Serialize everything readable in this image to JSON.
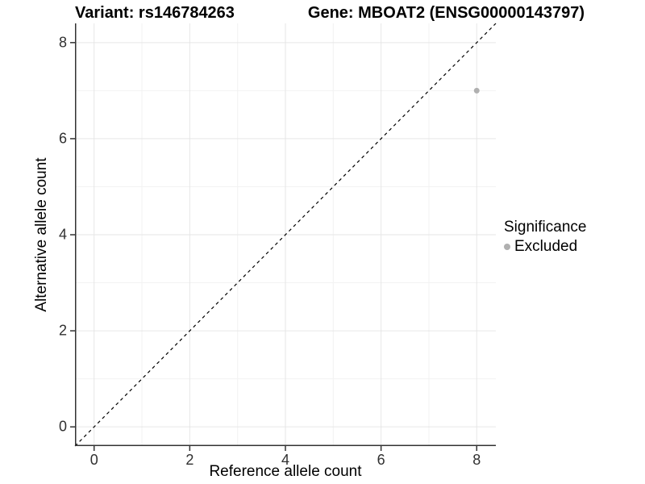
{
  "title": {
    "variant": "Variant: rs146784263",
    "gene": "Gene: MBOAT2 (ENSG00000143797)"
  },
  "axes": {
    "x": {
      "label": "Reference allele count"
    },
    "y": {
      "label": "Alternative allele count"
    }
  },
  "legend": {
    "title": "Significance",
    "items": [
      {
        "label": "Excluded",
        "color": "#b0b0b0"
      }
    ]
  },
  "colors": {
    "point": "#b0b0b0",
    "axis_line": "#333333",
    "major_grid": "#e6e6e6",
    "minor_grid": "#f2f2f2",
    "reference_line": "#000000",
    "background": "#ffffff"
  },
  "chart_data": {
    "type": "scatter",
    "title": "Variant: rs146784263 — Gene: MBOAT2 (ENSG00000143797)",
    "xlabel": "Reference allele count",
    "ylabel": "Alternative allele count",
    "xlim": [
      -0.4,
      8.4
    ],
    "ylim": [
      -0.4,
      8.4
    ],
    "x_ticks": [
      0,
      2,
      4,
      6,
      8
    ],
    "y_ticks": [
      0,
      2,
      4,
      6,
      8
    ],
    "x_minor_ticks": [
      1,
      3,
      5,
      7
    ],
    "y_minor_ticks": [
      1,
      3,
      5,
      7
    ],
    "grid": true,
    "legend_position": "right",
    "series": [
      {
        "name": "Excluded",
        "color": "#b0b0b0",
        "points": [
          {
            "x": 8,
            "y": 7
          }
        ]
      }
    ],
    "reference_line": {
      "type": "identity",
      "style": "dashed",
      "color": "#000000"
    }
  }
}
